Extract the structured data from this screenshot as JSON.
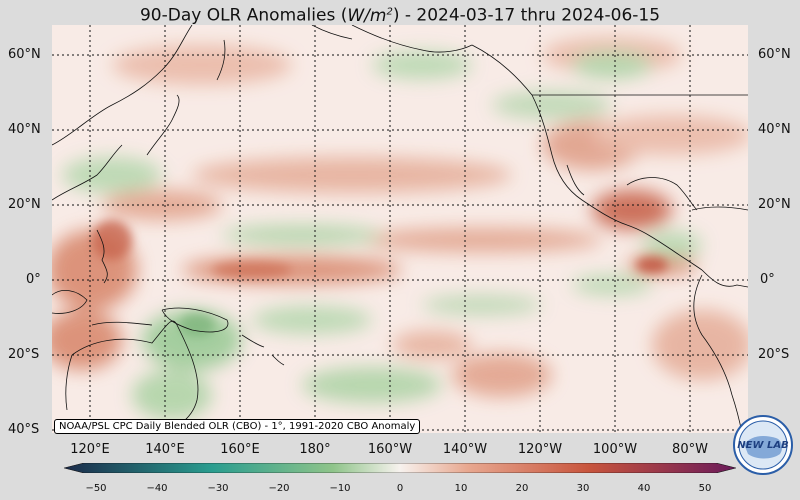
{
  "title_main": "90-Day OLR Anomalies (",
  "title_unit_base": "W/m",
  "title_unit_exp": "2",
  "title_dates": ") - 2024-03-17 thru 2024-06-15",
  "lat_labels": [
    "60°N",
    "40°N",
    "20°N",
    "0°",
    "20°S",
    "40°S"
  ],
  "lon_labels": [
    "120°E",
    "140°E",
    "160°E",
    "180°",
    "160°W",
    "140°W",
    "120°W",
    "100°W",
    "80°W"
  ],
  "source_note": "NOAA/PSL CPC Daily Blended OLR (CBO) - 1°, 1991-2020 CBO Anomaly",
  "colorbar_ticks": [
    "−50",
    "−40",
    "−30",
    "−20",
    "−10",
    "0",
    "10",
    "20",
    "30",
    "40",
    "50"
  ],
  "colorbar_colors": {
    "neg_max": "#1b2a4a",
    "neg_mid": "#2a9d8f",
    "neg_low": "#8fc48a",
    "zero": "#f7f2ee",
    "pos_low": "#e8a890",
    "pos_mid": "#c8553d",
    "pos_max": "#6a1a5a"
  },
  "logo_text": "NEW LAB",
  "map": {
    "lat_range": [
      -40,
      68
    ],
    "lon_range": [
      107,
      293
    ]
  }
}
